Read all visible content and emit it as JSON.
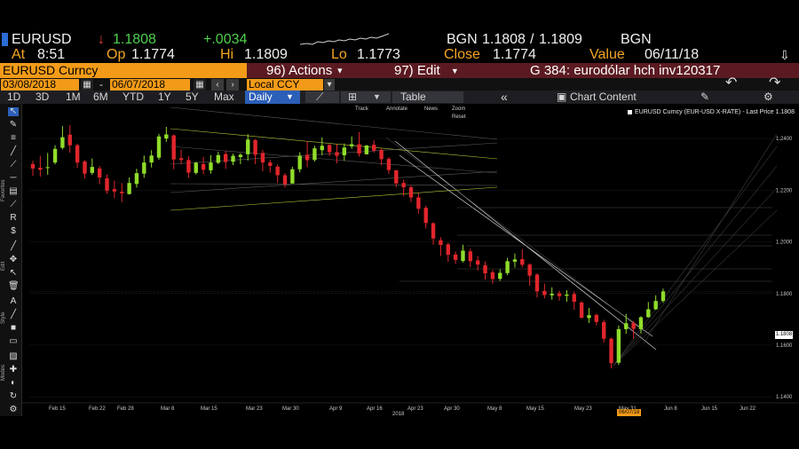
{
  "quote": {
    "ticker": "EURUSD",
    "arrow": "↓",
    "last": "1.1808",
    "change": "+.0034",
    "bid_label": "BGN",
    "bid": "1.1808",
    "separator": "/",
    "ask": "1.1809",
    "ask_label": "BGN",
    "time_label": "At",
    "time": "8:51",
    "open_label": "Op",
    "open": "1.1774",
    "high_label": "Hi",
    "high": "1.1809",
    "low_label": "Lo",
    "low": "1.1773",
    "close_label": "Close",
    "close": "1.1774",
    "value_label": "Value",
    "value": "06/11/18"
  },
  "titlebar": {
    "security": "EURUSD Curncy",
    "actions_num": "96)",
    "actions": "Actions",
    "edit_num": "97)",
    "edit": "Edit",
    "chart_id": "G 384: eurodólar hch inv120317"
  },
  "daterange": {
    "start": "03/08/2018",
    "dash": "-",
    "end": "06/07/2018",
    "currency": "Local CCY"
  },
  "toolbar": {
    "periods": [
      "1D",
      "3D",
      "1M",
      "6M",
      "YTD",
      "1Y",
      "5Y",
      "Max"
    ],
    "frequency": "Daily",
    "table": "Table",
    "collapse": "«",
    "chart_content": "Chart Content"
  },
  "annotations": {
    "track": "Track",
    "annotate": "Annotate",
    "news": "News",
    "zoom": "Zoom",
    "reset": "Reset"
  },
  "legend": {
    "text": "EURUSD Curncy (EUR-USD X-RATE) - Last Price 1.1808"
  },
  "left_labels": [
    "Favorites",
    "Edit",
    "Style",
    "Modes"
  ],
  "colors": {
    "up": "#8fdc2a",
    "down": "#e0262c",
    "accent": "#f39b18",
    "titlebar": "#5b1a21"
  },
  "chart_data": {
    "type": "candlestick",
    "title": "EURUSD Curncy (EUR-USD X-RATE) - Last Price 1.1808",
    "x_ticks": [
      "Feb 15",
      "Feb 22",
      "Feb 28",
      "Mar 8",
      "Mar 15",
      "Mar 23",
      "Mar 30",
      "Apr 9",
      "Apr 16",
      "Apr 23",
      "Apr 30",
      "May 8",
      "May 15",
      "May 23",
      "May 31",
      "Jun 8",
      "Jun 15",
      "Jun 22"
    ],
    "year_label": "2018",
    "last_date_tag": "06/07/18",
    "y_ticks": [
      "1.1400",
      "1.1600",
      "1.1800",
      "1.2000",
      "1.2200",
      "1.2400"
    ],
    "ylim": [
      1.138,
      1.25
    ],
    "last_price": 1.1808,
    "candles": [
      [
        1.2301,
        1.2284,
        1.2313,
        1.2256
      ],
      [
        1.2287,
        1.2279,
        1.2333,
        1.2252
      ],
      [
        1.2288,
        1.2289,
        1.2344,
        1.226
      ],
      [
        1.2307,
        1.236,
        1.2374,
        1.23
      ],
      [
        1.2364,
        1.2405,
        1.2448,
        1.2358
      ],
      [
        1.2415,
        1.2374,
        1.2452,
        1.2345
      ],
      [
        1.2374,
        1.2307,
        1.238,
        1.2286
      ],
      [
        1.2311,
        1.2264,
        1.2316,
        1.2245
      ],
      [
        1.2267,
        1.229,
        1.2323,
        1.2259
      ],
      [
        1.2284,
        1.2249,
        1.2294,
        1.2223
      ],
      [
        1.2246,
        1.2198,
        1.2261,
        1.2186
      ],
      [
        1.2204,
        1.2195,
        1.2237,
        1.2169
      ],
      [
        1.2194,
        1.2188,
        1.2227,
        1.2154
      ],
      [
        1.2185,
        1.2228,
        1.2249,
        1.2183
      ],
      [
        1.2224,
        1.2266,
        1.2283,
        1.221
      ],
      [
        1.2264,
        1.2307,
        1.2334,
        1.2248
      ],
      [
        1.2307,
        1.2334,
        1.2355,
        1.2288
      ],
      [
        1.2326,
        1.2408,
        1.2418,
        1.2318
      ],
      [
        1.24,
        1.2416,
        1.2445,
        1.2387
      ],
      [
        1.2412,
        1.2319,
        1.2416,
        1.2281
      ],
      [
        1.2324,
        1.2317,
        1.2357,
        1.23
      ],
      [
        1.2317,
        1.2268,
        1.2331,
        1.2248
      ],
      [
        1.2267,
        1.2306,
        1.231,
        1.2261
      ],
      [
        1.2301,
        1.2279,
        1.2329,
        1.2262
      ],
      [
        1.2277,
        1.2307,
        1.2336,
        1.2264
      ],
      [
        1.2306,
        1.2336,
        1.2349,
        1.2301
      ],
      [
        1.234,
        1.2309,
        1.2352,
        1.2282
      ],
      [
        1.231,
        1.2333,
        1.2341,
        1.2297
      ],
      [
        1.2328,
        1.2337,
        1.2343,
        1.2301
      ],
      [
        1.2339,
        1.2396,
        1.2417,
        1.2315
      ],
      [
        1.2394,
        1.2337,
        1.2398,
        1.2301
      ],
      [
        1.2344,
        1.2307,
        1.2356,
        1.2273
      ],
      [
        1.2307,
        1.2294,
        1.2317,
        1.2268
      ],
      [
        1.2291,
        1.2258,
        1.23,
        1.2228
      ],
      [
        1.2258,
        1.2223,
        1.2266,
        1.221
      ],
      [
        1.2226,
        1.2281,
        1.2291,
        1.2225
      ],
      [
        1.2281,
        1.2333,
        1.2347,
        1.2269
      ],
      [
        1.2337,
        1.2316,
        1.239,
        1.2289
      ],
      [
        1.2317,
        1.2362,
        1.2372,
        1.2311
      ],
      [
        1.2355,
        1.2372,
        1.2404,
        1.2335
      ],
      [
        1.2375,
        1.2347,
        1.2379,
        1.2332
      ],
      [
        1.2347,
        1.2333,
        1.2378,
        1.2304
      ],
      [
        1.2335,
        1.2365,
        1.2381,
        1.2314
      ],
      [
        1.237,
        1.2378,
        1.2408,
        1.236
      ],
      [
        1.2378,
        1.2342,
        1.2425,
        1.233
      ],
      [
        1.2339,
        1.2373,
        1.2375,
        1.2338
      ],
      [
        1.2376,
        1.2353,
        1.2393,
        1.2346
      ],
      [
        1.2356,
        1.232,
        1.2361,
        1.2297
      ],
      [
        1.2321,
        1.2278,
        1.2328,
        1.2263
      ],
      [
        1.2277,
        1.2226,
        1.2278,
        1.2212
      ],
      [
        1.2228,
        1.2211,
        1.2241,
        1.2176
      ],
      [
        1.2211,
        1.2172,
        1.2218,
        1.2154
      ],
      [
        1.2172,
        1.2128,
        1.2188,
        1.2109
      ],
      [
        1.2132,
        1.2073,
        1.214,
        1.2052
      ],
      [
        1.2072,
        1.2013,
        1.2076,
        1.1989
      ],
      [
        1.2006,
        1.1988,
        1.2018,
        1.1945
      ],
      [
        1.199,
        1.195,
        1.1997,
        1.1923
      ],
      [
        1.1951,
        1.193,
        1.1963,
        1.1914
      ],
      [
        1.1926,
        1.1966,
        1.1989,
        1.192
      ],
      [
        1.1963,
        1.1925,
        1.1973,
        1.1902
      ],
      [
        1.1928,
        1.1912,
        1.1944,
        1.1889
      ],
      [
        1.1909,
        1.1878,
        1.1924,
        1.1853
      ],
      [
        1.1882,
        1.1856,
        1.1891,
        1.1837
      ],
      [
        1.1857,
        1.188,
        1.1894,
        1.1849
      ],
      [
        1.1879,
        1.1925,
        1.1938,
        1.1871
      ],
      [
        1.1923,
        1.1932,
        1.1955,
        1.19
      ],
      [
        1.1933,
        1.1911,
        1.1971,
        1.1901
      ],
      [
        1.1912,
        1.1869,
        1.1917,
        1.183
      ],
      [
        1.1873,
        1.1808,
        1.1878,
        1.1785
      ],
      [
        1.181,
        1.1794,
        1.1838,
        1.1781
      ],
      [
        1.1793,
        1.1799,
        1.1824,
        1.1776
      ],
      [
        1.1801,
        1.179,
        1.1811,
        1.1772
      ],
      [
        1.1791,
        1.1796,
        1.1813,
        1.1768
      ],
      [
        1.1798,
        1.1768,
        1.1808,
        1.1737
      ],
      [
        1.1765,
        1.1706,
        1.1771,
        1.1704
      ],
      [
        1.1705,
        1.1716,
        1.1744,
        1.1686
      ],
      [
        1.1717,
        1.169,
        1.1722,
        1.1676
      ],
      [
        1.1689,
        1.1625,
        1.1698,
        1.161
      ],
      [
        1.1625,
        1.153,
        1.1629,
        1.151
      ],
      [
        1.1532,
        1.1662,
        1.1676,
        1.1523
      ],
      [
        1.1662,
        1.1685,
        1.1721,
        1.1644
      ],
      [
        1.1686,
        1.1663,
        1.1693,
        1.1625
      ],
      [
        1.1662,
        1.1708,
        1.1712,
        1.1645
      ],
      [
        1.1708,
        1.1739,
        1.1767,
        1.1707
      ],
      [
        1.1739,
        1.1771,
        1.1793,
        1.1736
      ],
      [
        1.1771,
        1.1808,
        1.1819,
        1.1764
      ]
    ]
  }
}
